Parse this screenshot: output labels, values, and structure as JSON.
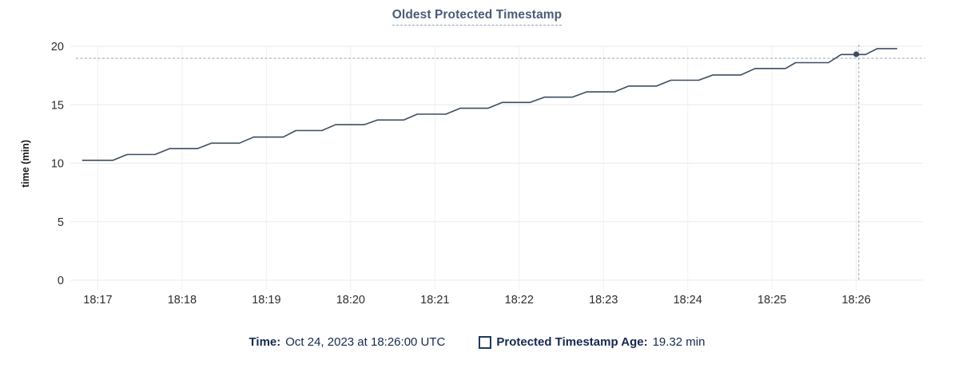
{
  "title": "Oldest Protected Timestamp",
  "ylabel": "time (min)",
  "legend": {
    "time_label": "Time:",
    "time_value": "Oct 24, 2023 at 18:26:00 UTC",
    "series_label": "Protected Timestamp Age:",
    "series_value": "19.32 min",
    "checkbox_icon": "unchecked-square"
  },
  "colors": {
    "series_line": "#3e4c62",
    "hover_dot": "#3e4c62",
    "title_text": "#4a5b75",
    "title_underline": "#93a3b8",
    "grid_h": "#eaeaea",
    "grid_v": "#f0f0f0",
    "axis_text": "#2d2d2d",
    "crosshair": "#90a4b5",
    "legend_text": "#16294d",
    "checkbox_border": "#20395c",
    "background": "#ffffff"
  },
  "chart_data": {
    "type": "line",
    "title": "Oldest Protected Timestamp",
    "xlabel": "",
    "ylabel": "time (min)",
    "ylim": [
      0,
      20
    ],
    "yticks": [
      0,
      5,
      10,
      15,
      20
    ],
    "xlim_minutes_after_1800": [
      16.74,
      26.79
    ],
    "xticks": [
      {
        "t": 17,
        "label": "18:17"
      },
      {
        "t": 18,
        "label": "18:18"
      },
      {
        "t": 19,
        "label": "18:19"
      },
      {
        "t": 20,
        "label": "18:20"
      },
      {
        "t": 21,
        "label": "18:21"
      },
      {
        "t": 22,
        "label": "18:22"
      },
      {
        "t": 23,
        "label": "18:23"
      },
      {
        "t": 24,
        "label": "18:24"
      },
      {
        "t": 25,
        "label": "18:25"
      },
      {
        "t": 26,
        "label": "18:26"
      }
    ],
    "grid": true,
    "legend_position": "bottom",
    "series": [
      {
        "name": "Protected Timestamp Age",
        "unit": "min",
        "points": [
          [
            16.82,
            10.25
          ],
          [
            17.18,
            10.25
          ],
          [
            17.35,
            10.75
          ],
          [
            17.68,
            10.75
          ],
          [
            17.85,
            11.25
          ],
          [
            18.18,
            11.25
          ],
          [
            18.35,
            11.72
          ],
          [
            18.68,
            11.72
          ],
          [
            18.85,
            12.24
          ],
          [
            19.2,
            12.24
          ],
          [
            19.35,
            12.8
          ],
          [
            19.66,
            12.8
          ],
          [
            19.82,
            13.3
          ],
          [
            20.16,
            13.3
          ],
          [
            20.32,
            13.7
          ],
          [
            20.63,
            13.7
          ],
          [
            20.79,
            14.2
          ],
          [
            21.13,
            14.2
          ],
          [
            21.3,
            14.7
          ],
          [
            21.63,
            14.7
          ],
          [
            21.8,
            15.2
          ],
          [
            22.13,
            15.2
          ],
          [
            22.3,
            15.65
          ],
          [
            22.63,
            15.65
          ],
          [
            22.8,
            16.1
          ],
          [
            23.13,
            16.1
          ],
          [
            23.3,
            16.6
          ],
          [
            23.63,
            16.6
          ],
          [
            23.8,
            17.1
          ],
          [
            24.13,
            17.1
          ],
          [
            24.3,
            17.55
          ],
          [
            24.63,
            17.55
          ],
          [
            24.8,
            18.1
          ],
          [
            25.16,
            18.1
          ],
          [
            25.28,
            18.6
          ],
          [
            25.67,
            18.6
          ],
          [
            25.82,
            19.3
          ],
          [
            26.11,
            19.3
          ],
          [
            26.25,
            19.8
          ],
          [
            26.48,
            19.8
          ]
        ]
      }
    ],
    "hover": {
      "time_label": "Oct 24, 2023 at 18:26:00 UTC",
      "point_t": 26.0,
      "point_value": 19.32,
      "crosshair_t": 26.03,
      "crosshair_value": 18.98
    }
  }
}
